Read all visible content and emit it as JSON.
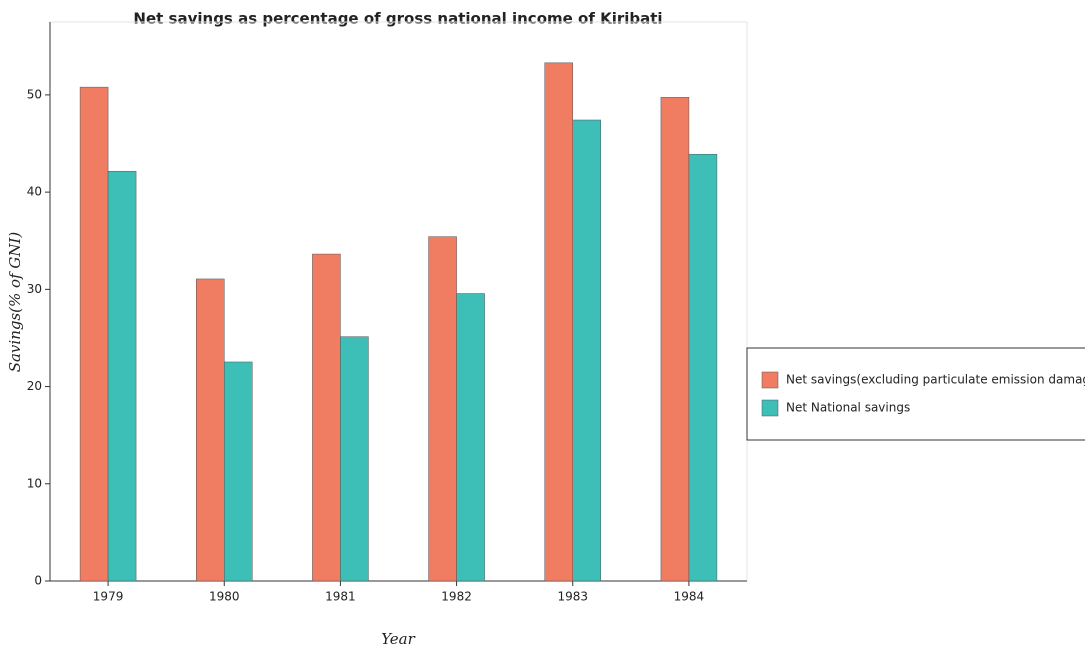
{
  "chart_data": {
    "type": "bar",
    "title": "Net savings as percentage of gross national income of Kiribati",
    "x_label": "Year",
    "y_label": "Savings(% of GNI)",
    "categories": [
      "1979",
      "1980",
      "1981",
      "1982",
      "1983",
      "1984"
    ],
    "series": [
      {
        "name": "Net savings(excluding particulate emission damage)",
        "color": "#f07c61",
        "values": [
          50.8,
          31.07,
          33.63,
          35.42,
          53.3,
          49.75
        ]
      },
      {
        "name": "Net National savings",
        "color": "#3dbfb8",
        "values": [
          42.15,
          22.53,
          25.13,
          29.57,
          47.42,
          43.9
        ]
      }
    ],
    "ylim": [
      0,
      57.5
    ],
    "yticks": [
      0,
      10,
      20,
      30,
      40,
      50
    ],
    "legend": "right"
  }
}
